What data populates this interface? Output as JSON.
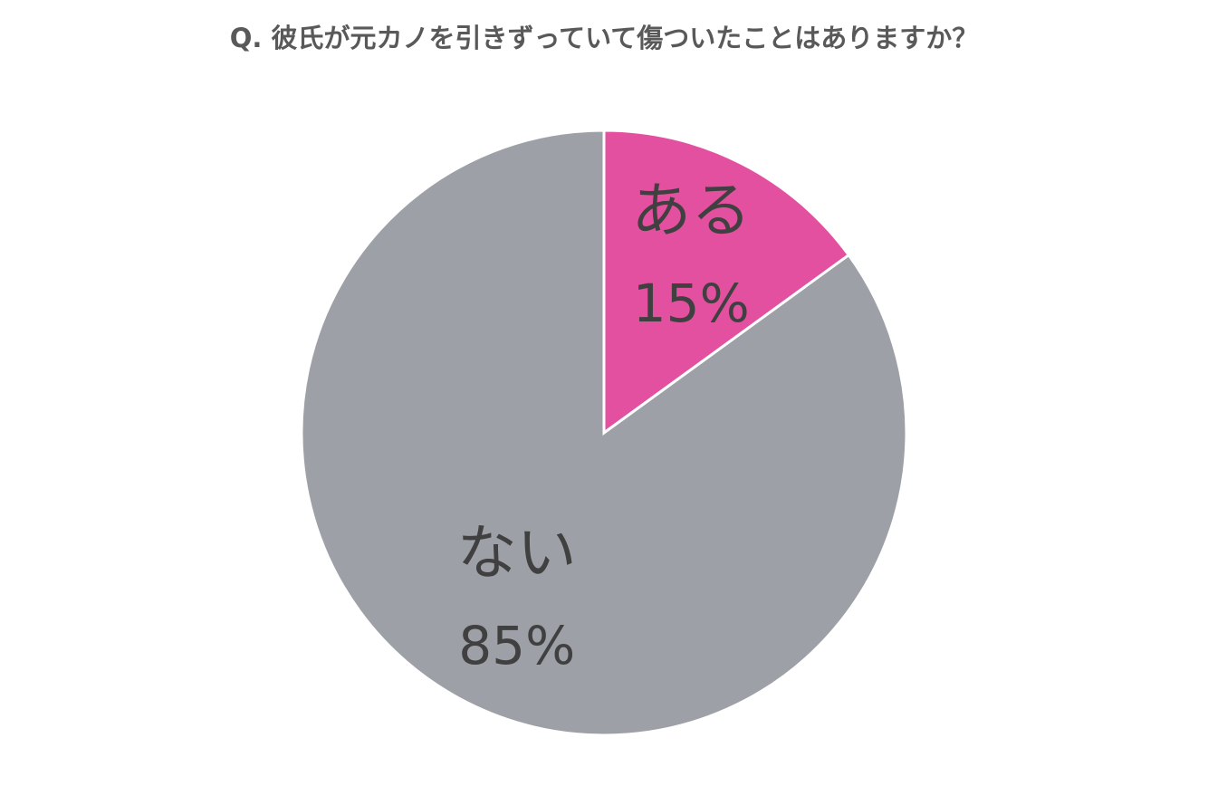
{
  "chart_data": {
    "type": "pie",
    "title": "Q. 彼氏が元カノを引きずっていて傷ついたことはありますか？",
    "categories": [
      "ある",
      "ない"
    ],
    "values": [
      15,
      85
    ],
    "value_labels": [
      "15%",
      "85%"
    ],
    "colors": [
      "#e2509f",
      "#9ea0a7"
    ]
  }
}
